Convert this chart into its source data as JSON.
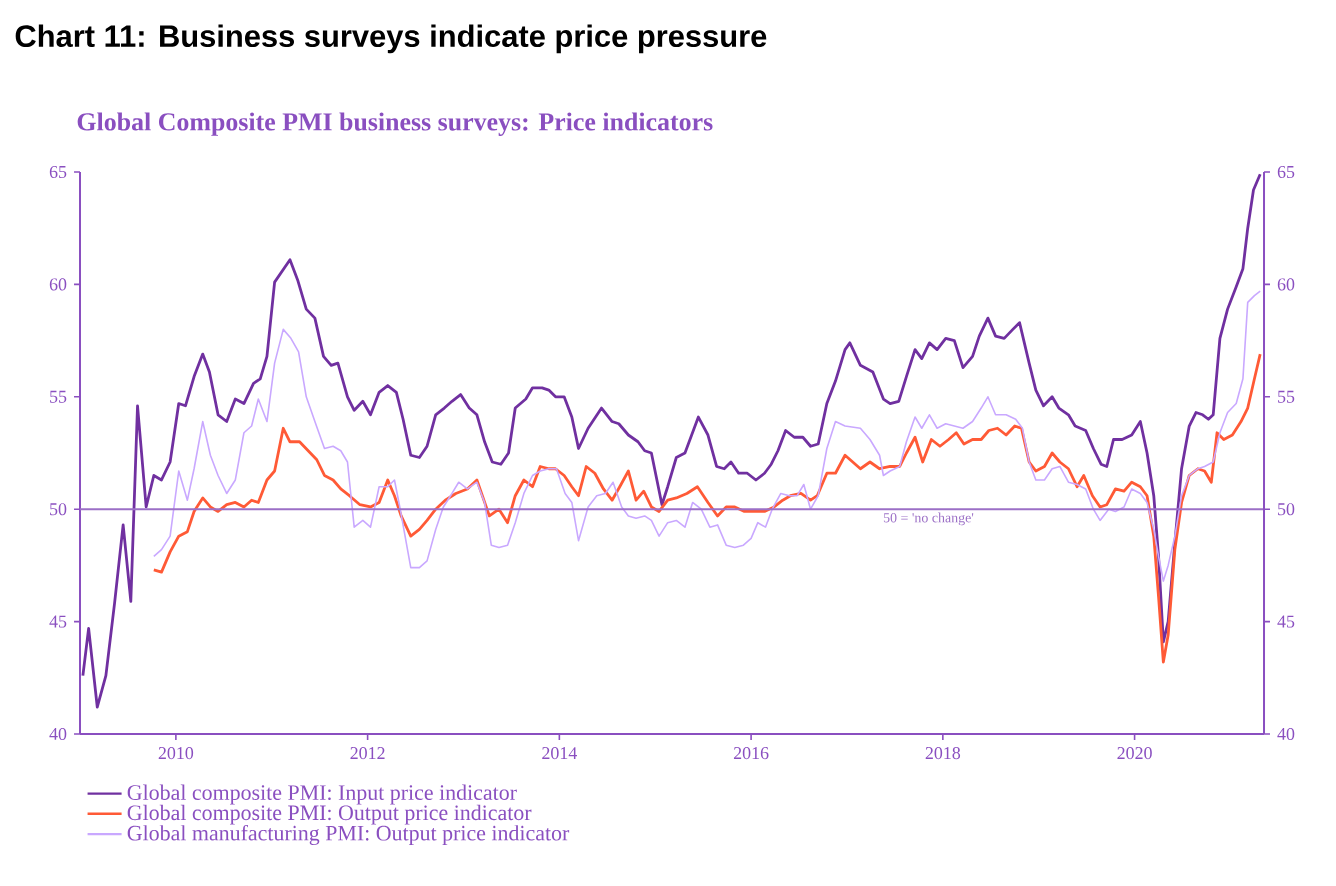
{
  "chart_data": {
    "type": "line",
    "title": "Chart 11: Business surveys indicate price pressure",
    "subtitle": "Global Composite PMI business surveys: Price indicators",
    "xlim": [
      2009,
      2021.35
    ],
    "xticks": [
      2010,
      2012,
      2014,
      2016,
      2018,
      2020
    ],
    "ylim": [
      40,
      65
    ],
    "yticks": [
      40,
      45,
      50,
      55,
      60,
      65
    ],
    "y2lim": [
      40,
      65
    ],
    "y2ticks": [
      40,
      45,
      50,
      55,
      60,
      65
    ],
    "legend": "bottom",
    "marker": "none",
    "line_style": "solid",
    "ref_lines": [
      {
        "axis": "y",
        "value": 50,
        "label": "50 = 'no change'",
        "color": "#9b6fc6"
      }
    ],
    "series": [
      {
        "name": "Global composite PMI: Input price indicator",
        "color": "#7030a0",
        "x": [
          2009.03,
          2009.09,
          2009.18,
          2009.27,
          2009.36,
          2009.45,
          2009.53,
          2009.6,
          2009.69,
          2009.77,
          2009.85,
          2009.94,
          2010.03,
          2010.1,
          2010.19,
          2010.28,
          2010.35,
          2010.44,
          2010.53,
          2010.62,
          2010.71,
          2010.81,
          2010.88,
          2010.95,
          2011.03,
          2011.19,
          2011.27,
          2011.36,
          2011.45,
          2011.54,
          2011.62,
          2011.69,
          2011.79,
          2011.86,
          2011.95,
          2012.03,
          2012.12,
          2012.21,
          2012.3,
          2012.37,
          2012.45,
          2012.54,
          2012.62,
          2012.71,
          2012.8,
          2012.88,
          2012.97,
          2013.06,
          2013.14,
          2013.22,
          2013.3,
          2013.39,
          2013.47,
          2013.54,
          2013.65,
          2013.72,
          2013.82,
          2013.89,
          2013.96,
          2014.05,
          2014.13,
          2014.2,
          2014.3,
          2014.44,
          2014.55,
          2014.62,
          2014.72,
          2014.82,
          2014.89,
          2014.96,
          2015.07,
          2015.13,
          2015.22,
          2015.31,
          2015.45,
          2015.55,
          2015.64,
          2015.72,
          2015.79,
          2015.87,
          2015.96,
          2016.05,
          2016.14,
          2016.21,
          2016.28,
          2016.36,
          2016.45,
          2016.54,
          2016.62,
          2016.7,
          2016.79,
          2016.88,
          2016.98,
          2017.03,
          2017.14,
          2017.27,
          2017.38,
          2017.45,
          2017.54,
          2017.62,
          2017.71,
          2017.78,
          2017.86,
          2017.94,
          2018.03,
          2018.12,
          2018.21,
          2018.31,
          2018.38,
          2018.47,
          2018.55,
          2018.64,
          2018.73,
          2018.8,
          2018.9,
          2018.97,
          2019.05,
          2019.14,
          2019.21,
          2019.31,
          2019.38,
          2019.49,
          2019.57,
          2019.65,
          2019.71,
          2019.78,
          2019.87,
          2019.97,
          2020.06,
          2020.13,
          2020.2,
          2020.25,
          2020.3,
          2020.35,
          2020.42,
          2020.49,
          2020.57,
          2020.64,
          2020.71,
          2020.77,
          2020.82,
          2020.89,
          2020.97,
          2021.06,
          2021.13,
          2021.18,
          2021.24,
          2021.31
        ],
        "values": [
          42.6,
          44.7,
          41.2,
          42.6,
          45.8,
          49.3,
          45.9,
          54.6,
          50.1,
          51.5,
          51.3,
          52.1,
          54.7,
          54.6,
          55.9,
          56.9,
          56.1,
          54.2,
          53.9,
          54.9,
          54.7,
          55.6,
          55.8,
          56.8,
          60.1,
          61.1,
          60.2,
          58.9,
          58.5,
          56.8,
          56.4,
          56.5,
          55.0,
          54.4,
          54.8,
          54.2,
          55.2,
          55.5,
          55.2,
          54.0,
          52.4,
          52.3,
          52.8,
          54.2,
          54.5,
          54.8,
          55.1,
          54.5,
          54.2,
          53.0,
          52.1,
          52.0,
          52.5,
          54.5,
          54.9,
          55.4,
          55.4,
          55.3,
          55.0,
          55.0,
          54.1,
          52.7,
          53.6,
          54.5,
          53.9,
          53.8,
          53.3,
          53.0,
          52.6,
          52.5,
          50.2,
          51.0,
          52.3,
          52.5,
          54.1,
          53.3,
          51.9,
          51.8,
          52.1,
          51.6,
          51.6,
          51.3,
          51.6,
          52.0,
          52.6,
          53.5,
          53.2,
          53.2,
          52.8,
          52.9,
          54.7,
          55.7,
          57.1,
          57.4,
          56.4,
          56.1,
          54.9,
          54.7,
          54.8,
          55.9,
          57.1,
          56.7,
          57.4,
          57.1,
          57.6,
          57.5,
          56.3,
          56.8,
          57.7,
          58.5,
          57.7,
          57.6,
          58.0,
          58.3,
          56.5,
          55.3,
          54.6,
          55.0,
          54.5,
          54.2,
          53.7,
          53.5,
          52.7,
          52.0,
          51.9,
          53.1,
          53.1,
          53.3,
          53.9,
          52.5,
          50.6,
          47.9,
          44.1,
          45.0,
          48.5,
          51.8,
          53.7,
          54.3,
          54.2,
          54.0,
          54.2,
          57.6,
          58.9,
          59.9,
          60.7,
          62.5,
          64.2,
          64.9
        ]
      },
      {
        "name": "Global composite PMI: Output price indicator",
        "color": "#ff5a36",
        "x": [
          2009.77,
          2009.85,
          2009.94,
          2010.03,
          2010.12,
          2010.19,
          2010.28,
          2010.36,
          2010.44,
          2010.53,
          2010.62,
          2010.71,
          2010.79,
          2010.86,
          2010.95,
          2011.03,
          2011.12,
          2011.19,
          2011.29,
          2011.38,
          2011.47,
          2011.55,
          2011.64,
          2011.72,
          2011.81,
          2011.92,
          2012.03,
          2012.12,
          2012.21,
          2012.28,
          2012.35,
          2012.45,
          2012.54,
          2012.62,
          2012.71,
          2012.81,
          2012.92,
          2013.04,
          2013.14,
          2013.27,
          2013.37,
          2013.46,
          2013.54,
          2013.63,
          2013.72,
          2013.8,
          2013.89,
          2013.96,
          2014.05,
          2014.13,
          2014.2,
          2014.28,
          2014.37,
          2014.46,
          2014.55,
          2014.63,
          2014.72,
          2014.8,
          2014.88,
          2014.96,
          2015.04,
          2015.13,
          2015.22,
          2015.33,
          2015.44,
          2015.55,
          2015.65,
          2015.74,
          2015.83,
          2015.93,
          2016.03,
          2016.14,
          2016.24,
          2016.33,
          2016.41,
          2016.52,
          2016.62,
          2016.69,
          2016.79,
          2016.88,
          2016.98,
          2017.14,
          2017.24,
          2017.34,
          2017.45,
          2017.55,
          2017.62,
          2017.71,
          2017.79,
          2017.88,
          2017.97,
          2018.06,
          2018.14,
          2018.22,
          2018.31,
          2018.4,
          2018.48,
          2018.57,
          2018.66,
          2018.75,
          2018.82,
          2018.9,
          2018.97,
          2019.06,
          2019.14,
          2019.22,
          2019.31,
          2019.4,
          2019.47,
          2019.56,
          2019.64,
          2019.71,
          2019.8,
          2019.89,
          2019.97,
          2020.06,
          2020.13,
          2020.2,
          2020.25,
          2020.3,
          2020.35,
          2020.42,
          2020.49,
          2020.57,
          2020.66,
          2020.73,
          2020.8,
          2020.86,
          2020.93,
          2021.02,
          2021.11,
          2021.18,
          2021.25,
          2021.31
        ],
        "values": [
          47.3,
          47.2,
          48.1,
          48.8,
          49.0,
          49.9,
          50.5,
          50.1,
          49.9,
          50.2,
          50.3,
          50.1,
          50.4,
          50.3,
          51.3,
          51.7,
          53.6,
          53.0,
          53.0,
          52.6,
          52.2,
          51.5,
          51.3,
          50.9,
          50.6,
          50.2,
          50.1,
          50.3,
          51.3,
          50.6,
          49.7,
          48.8,
          49.1,
          49.5,
          50.0,
          50.4,
          50.7,
          50.9,
          51.3,
          49.7,
          50.0,
          49.4,
          50.6,
          51.3,
          51.0,
          51.9,
          51.8,
          51.8,
          51.5,
          51.0,
          50.6,
          51.9,
          51.6,
          50.9,
          50.4,
          51.0,
          51.7,
          50.4,
          50.8,
          50.1,
          49.9,
          50.4,
          50.5,
          50.7,
          51.0,
          50.3,
          49.7,
          50.1,
          50.1,
          49.9,
          49.9,
          49.9,
          50.1,
          50.4,
          50.6,
          50.7,
          50.4,
          50.6,
          51.6,
          51.6,
          52.4,
          51.8,
          52.1,
          51.8,
          51.9,
          51.9,
          52.5,
          53.2,
          52.1,
          53.1,
          52.8,
          53.1,
          53.4,
          52.9,
          53.1,
          53.1,
          53.5,
          53.6,
          53.3,
          53.7,
          53.6,
          52.1,
          51.7,
          51.9,
          52.5,
          52.1,
          51.8,
          51.0,
          51.5,
          50.6,
          50.1,
          50.2,
          50.9,
          50.8,
          51.2,
          51.0,
          50.6,
          48.8,
          46.1,
          43.2,
          44.4,
          48.2,
          50.3,
          51.5,
          51.8,
          51.7,
          51.2,
          53.4,
          53.1,
          53.3,
          53.9,
          54.5,
          55.8,
          56.9
        ]
      },
      {
        "name": "Global manufacturing PMI: Output price indicator",
        "color": "#c9a8ff",
        "x": [
          2009.77,
          2009.85,
          2009.94,
          2010.03,
          2010.12,
          2010.19,
          2010.28,
          2010.36,
          2010.44,
          2010.53,
          2010.62,
          2010.71,
          2010.79,
          2010.86,
          2010.95,
          2011.03,
          2011.12,
          2011.2,
          2011.28,
          2011.36,
          2011.45,
          2011.55,
          2011.64,
          2011.72,
          2011.79,
          2011.86,
          2011.95,
          2012.03,
          2012.12,
          2012.21,
          2012.28,
          2012.34,
          2012.45,
          2012.54,
          2012.62,
          2012.71,
          2012.79,
          2012.88,
          2012.95,
          2013.04,
          2013.14,
          2013.22,
          2013.29,
          2013.37,
          2013.46,
          2013.54,
          2013.63,
          2013.72,
          2013.8,
          2013.89,
          2013.97,
          2014.06,
          2014.13,
          2014.2,
          2014.3,
          2014.39,
          2014.48,
          2014.56,
          2014.65,
          2014.72,
          2014.8,
          2014.89,
          2014.96,
          2015.04,
          2015.13,
          2015.22,
          2015.31,
          2015.39,
          2015.48,
          2015.57,
          2015.65,
          2015.74,
          2015.83,
          2015.92,
          2016.0,
          2016.07,
          2016.15,
          2016.22,
          2016.31,
          2016.4,
          2016.48,
          2016.55,
          2016.62,
          2016.7,
          2016.79,
          2016.88,
          2016.98,
          2017.14,
          2017.24,
          2017.34,
          2017.38,
          2017.45,
          2017.55,
          2017.62,
          2017.71,
          2017.78,
          2017.86,
          2017.94,
          2018.03,
          2018.12,
          2018.21,
          2018.31,
          2018.4,
          2018.47,
          2018.55,
          2018.66,
          2018.76,
          2018.83,
          2018.9,
          2018.97,
          2019.06,
          2019.14,
          2019.22,
          2019.31,
          2019.4,
          2019.49,
          2019.57,
          2019.64,
          2019.73,
          2019.8,
          2019.89,
          2019.97,
          2020.06,
          2020.13,
          2020.2,
          2020.25,
          2020.3,
          2020.35,
          2020.42,
          2020.49,
          2020.57,
          2020.66,
          2020.73,
          2020.82,
          2020.89,
          2020.97,
          2021.06,
          2021.13,
          2021.18,
          2021.25,
          2021.31
        ],
        "values": [
          47.9,
          48.2,
          48.8,
          51.7,
          50.4,
          51.8,
          53.9,
          52.4,
          51.5,
          50.7,
          51.3,
          53.4,
          53.7,
          54.9,
          53.9,
          56.5,
          58.0,
          57.6,
          57.0,
          55.0,
          53.9,
          52.7,
          52.8,
          52.6,
          52.1,
          49.2,
          49.5,
          49.2,
          51.0,
          51.0,
          51.3,
          50.0,
          47.4,
          47.4,
          47.7,
          49.1,
          50.1,
          50.7,
          51.2,
          50.9,
          51.2,
          50.3,
          48.4,
          48.3,
          48.4,
          49.4,
          50.7,
          51.5,
          51.7,
          51.8,
          51.8,
          50.7,
          50.3,
          48.6,
          50.1,
          50.6,
          50.7,
          51.2,
          50.1,
          49.7,
          49.6,
          49.7,
          49.5,
          48.8,
          49.4,
          49.5,
          49.2,
          50.3,
          50.0,
          49.2,
          49.3,
          48.4,
          48.3,
          48.4,
          48.7,
          49.4,
          49.2,
          50.0,
          50.7,
          50.6,
          50.6,
          51.1,
          50.0,
          50.6,
          52.7,
          53.9,
          53.7,
          53.6,
          53.1,
          52.4,
          51.5,
          51.7,
          51.9,
          53.0,
          54.1,
          53.6,
          54.2,
          53.6,
          53.8,
          53.7,
          53.6,
          53.9,
          54.5,
          55.0,
          54.2,
          54.2,
          54.0,
          53.6,
          52.1,
          51.3,
          51.3,
          51.8,
          51.9,
          51.2,
          51.1,
          50.9,
          50.0,
          49.5,
          50.0,
          49.9,
          50.1,
          50.9,
          50.7,
          50.3,
          49.1,
          47.9,
          46.8,
          47.5,
          48.8,
          50.6,
          51.5,
          51.8,
          51.9,
          52.1,
          53.4,
          54.3,
          54.7,
          55.8,
          59.2,
          59.5,
          59.7
        ]
      }
    ]
  }
}
